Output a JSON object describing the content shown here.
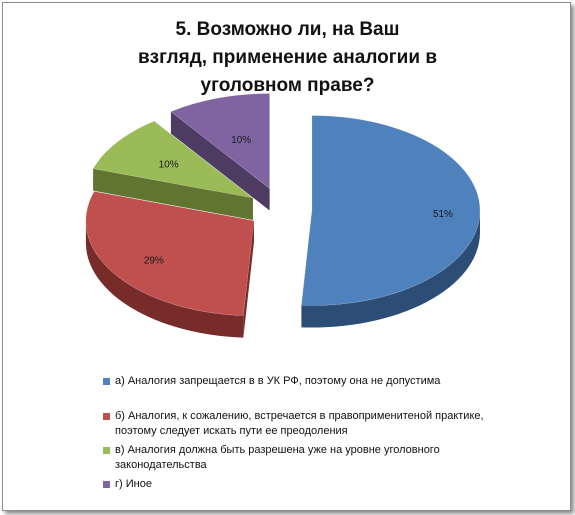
{
  "chart_data": {
    "type": "pie",
    "title": "5. Возможно ли, на Ваш взгляд, применение аналогии в уголовном праве?",
    "title_lines": [
      "5. Возможно ли, на Ваш",
      "взгляд, применение аналогии в",
      "уголовном праве?"
    ],
    "categories": [
      "а) Аналогия запрещается в в УК РФ, поэтому она не допустима",
      "б) Аналогия, к сожалению, встречается в правоприменитеной практике, поэтому следует искать пути ее преодоления",
      "в) Аналогия должна быть разрешена уже на уровне уголовного законодательства",
      "г) Иное"
    ],
    "values": [
      51,
      29,
      10,
      10
    ],
    "data_labels": [
      "51%",
      "29%",
      "10%",
      "10%"
    ],
    "colors": [
      "#4f81bd",
      "#c0504d",
      "#9bbb59",
      "#8064a2"
    ],
    "side_colors": [
      "#2c4d75",
      "#772c2a",
      "#5f7530",
      "#4d3b62"
    ],
    "exploded": true,
    "three_d": true,
    "legend_position": "bottom"
  },
  "legend": {
    "items": [
      "а) Аналогия запрещается в в УК РФ, поэтому она не допустима",
      "б) Аналогия, к сожалению, встречается в правоприменитеной практике, поэтому следует искать пути ее преодоления",
      "в) Аналогия должна быть разрешена уже на уровне уголовного законодательства",
      "г) Иное"
    ]
  }
}
